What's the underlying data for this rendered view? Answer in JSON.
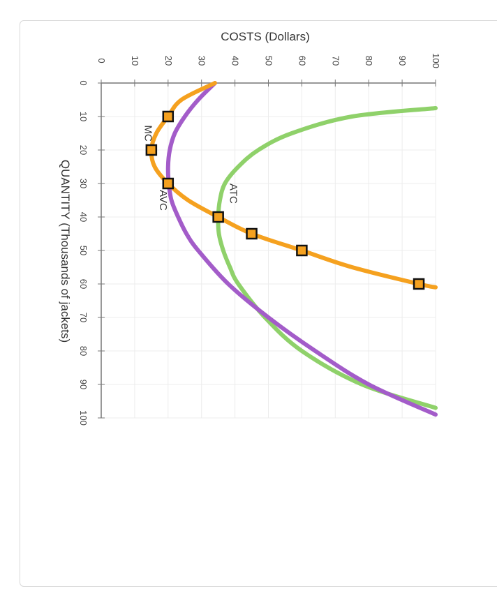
{
  "chart_data": {
    "type": "line",
    "orientation": "rotated-90-clockwise",
    "title": "",
    "xlabel": "QUANTITY (Thousands of jackets)",
    "ylabel": "COSTS (Dollars)",
    "xlim": [
      0,
      100
    ],
    "ylim": [
      0,
      100
    ],
    "x_ticks": [
      0,
      10,
      20,
      30,
      40,
      50,
      60,
      70,
      80,
      90,
      100
    ],
    "y_ticks": [
      0,
      10,
      20,
      30,
      40,
      50,
      60,
      70,
      80,
      90,
      100
    ],
    "grid": true,
    "series": [
      {
        "name": "ATC",
        "color": "#8fd16a",
        "points": [
          [
            7.5,
            100
          ],
          [
            10,
            75
          ],
          [
            15,
            57
          ],
          [
            20,
            47
          ],
          [
            25,
            41
          ],
          [
            30,
            37
          ],
          [
            35,
            35.5
          ],
          [
            40,
            35
          ],
          [
            45,
            35.2
          ],
          [
            50,
            36.5
          ],
          [
            55,
            38.5
          ],
          [
            60,
            41
          ],
          [
            70,
            49
          ],
          [
            80,
            60
          ],
          [
            90,
            78
          ],
          [
            97,
            100
          ]
        ]
      },
      {
        "name": "AVC",
        "color": "#a35cc9",
        "points": [
          [
            0,
            34
          ],
          [
            5,
            29
          ],
          [
            10,
            25
          ],
          [
            15,
            22
          ],
          [
            20,
            20.5
          ],
          [
            25,
            20
          ],
          [
            30,
            20.2
          ],
          [
            35,
            21
          ],
          [
            40,
            23
          ],
          [
            45,
            25.5
          ],
          [
            50,
            29
          ],
          [
            60,
            38
          ],
          [
            70,
            50
          ],
          [
            80,
            64
          ],
          [
            90,
            80
          ],
          [
            99,
            100
          ]
        ]
      },
      {
        "name": "MC",
        "color": "#f5a11f",
        "points": [
          [
            0,
            34
          ],
          [
            5,
            24
          ],
          [
            10,
            20
          ],
          [
            15,
            16.5
          ],
          [
            20,
            15
          ],
          [
            25,
            16
          ],
          [
            30,
            20
          ],
          [
            35,
            26
          ],
          [
            40,
            35
          ],
          [
            45,
            45
          ],
          [
            50,
            60
          ],
          [
            55,
            75
          ],
          [
            60,
            95
          ],
          [
            61,
            100
          ]
        ],
        "markers": [
          [
            10,
            20
          ],
          [
            20,
            15
          ],
          [
            30,
            20
          ],
          [
            40,
            35
          ],
          [
            45,
            45
          ],
          [
            50,
            60
          ],
          [
            60,
            95
          ]
        ]
      }
    ],
    "curve_labels": [
      {
        "text": "MC",
        "x": 15,
        "y": 13
      },
      {
        "text": "AVC",
        "x": 35,
        "y": 17.5
      },
      {
        "text": "ATC",
        "x": 33,
        "y": 38.5
      }
    ]
  }
}
